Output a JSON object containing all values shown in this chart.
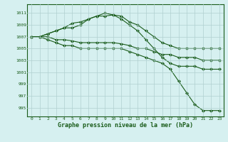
{
  "title": "Graphe pression niveau de la mer (hPa)",
  "background_color": "#d6f0f0",
  "grid_color": "#b0d0d0",
  "line_color": "#1a5c1a",
  "x_labels": [
    "0",
    "1",
    "2",
    "3",
    "4",
    "5",
    "6",
    "7",
    "8",
    "9",
    "10",
    "11",
    "12",
    "13",
    "14",
    "15",
    "16",
    "17",
    "18",
    "19",
    "20",
    "21",
    "22",
    "23"
  ],
  "ylim": [
    993.5,
    1012.5
  ],
  "yticks": [
    995,
    997,
    999,
    1001,
    1003,
    1005,
    1007,
    1009,
    1011
  ],
  "series": [
    [
      1007,
      1007,
      1007.5,
      1008,
      1008.5,
      1008.5,
      1009,
      1010,
      1010.5,
      1011,
      1010.7,
      1010,
      1009,
      1008,
      1006.5,
      1005,
      1003.5,
      1002.5,
      1002,
      1002,
      1002,
      1001.5,
      1001.5,
      1001.5
    ],
    [
      1007,
      1007,
      1007.5,
      1008,
      1008.5,
      1009.3,
      1009.5,
      1010,
      1010.5,
      1010.5,
      1010.7,
      1010.5,
      1009.5,
      1009,
      1008,
      1007,
      1006,
      1005.5,
      1005,
      1005,
      1005,
      1005,
      1005,
      1005
    ],
    [
      1007,
      1007,
      1007,
      1006.5,
      1006.5,
      1006.3,
      1006,
      1006,
      1006,
      1006,
      1006,
      1005.8,
      1005.5,
      1005,
      1005,
      1004.5,
      1004,
      1004,
      1003.5,
      1003.5,
      1003.5,
      1003,
      1003,
      1003
    ],
    [
      1007,
      1007,
      1006.5,
      1006,
      1005.5,
      1005.5,
      1005,
      1005,
      1005,
      1005,
      1005,
      1005,
      1004.5,
      1004,
      1003.5,
      1003,
      1002.5,
      1001.5,
      999.5,
      997.5,
      995.5,
      994.5,
      994.5,
      994.5
    ]
  ]
}
